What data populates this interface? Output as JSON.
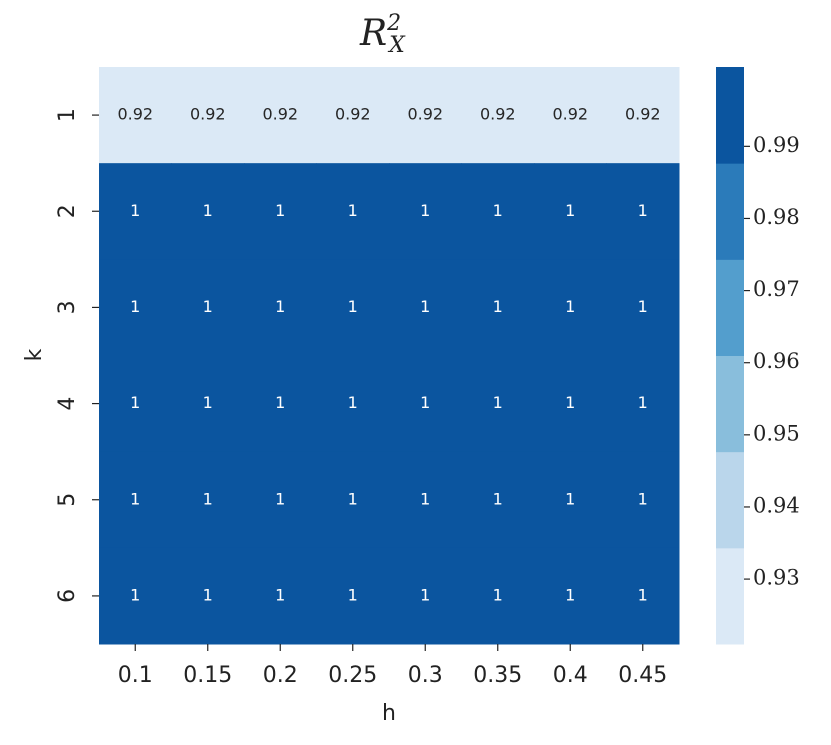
{
  "chart_data": {
    "type": "heatmap",
    "title": {
      "base": "R",
      "superscript": "2",
      "subscript": "X"
    },
    "x_label": "h",
    "y_label": "k",
    "x_categories": [
      "0.1",
      "0.15",
      "0.2",
      "0.25",
      "0.3",
      "0.35",
      "0.4",
      "0.45"
    ],
    "y_categories": [
      "1",
      "2",
      "3",
      "4",
      "5",
      "6"
    ],
    "values": [
      [
        0.92,
        0.92,
        0.92,
        0.92,
        0.92,
        0.92,
        0.92,
        0.92
      ],
      [
        1,
        1,
        1,
        1,
        1,
        1,
        1,
        1
      ],
      [
        1,
        1,
        1,
        1,
        1,
        1,
        1,
        1
      ],
      [
        1,
        1,
        1,
        1,
        1,
        1,
        1,
        1
      ],
      [
        1,
        1,
        1,
        1,
        1,
        1,
        1,
        1
      ],
      [
        1,
        1,
        1,
        1,
        1,
        1,
        1,
        1
      ]
    ],
    "colors": [
      "#dbe9f6",
      "#bad6eb",
      "#89bedc",
      "#539ecd",
      "#2b7bba",
      "#0b559f"
    ],
    "clim": [
      0.921,
      1.001
    ],
    "cticks": [
      0.93,
      0.94,
      0.95,
      0.96,
      0.97,
      0.98,
      0.99
    ]
  }
}
